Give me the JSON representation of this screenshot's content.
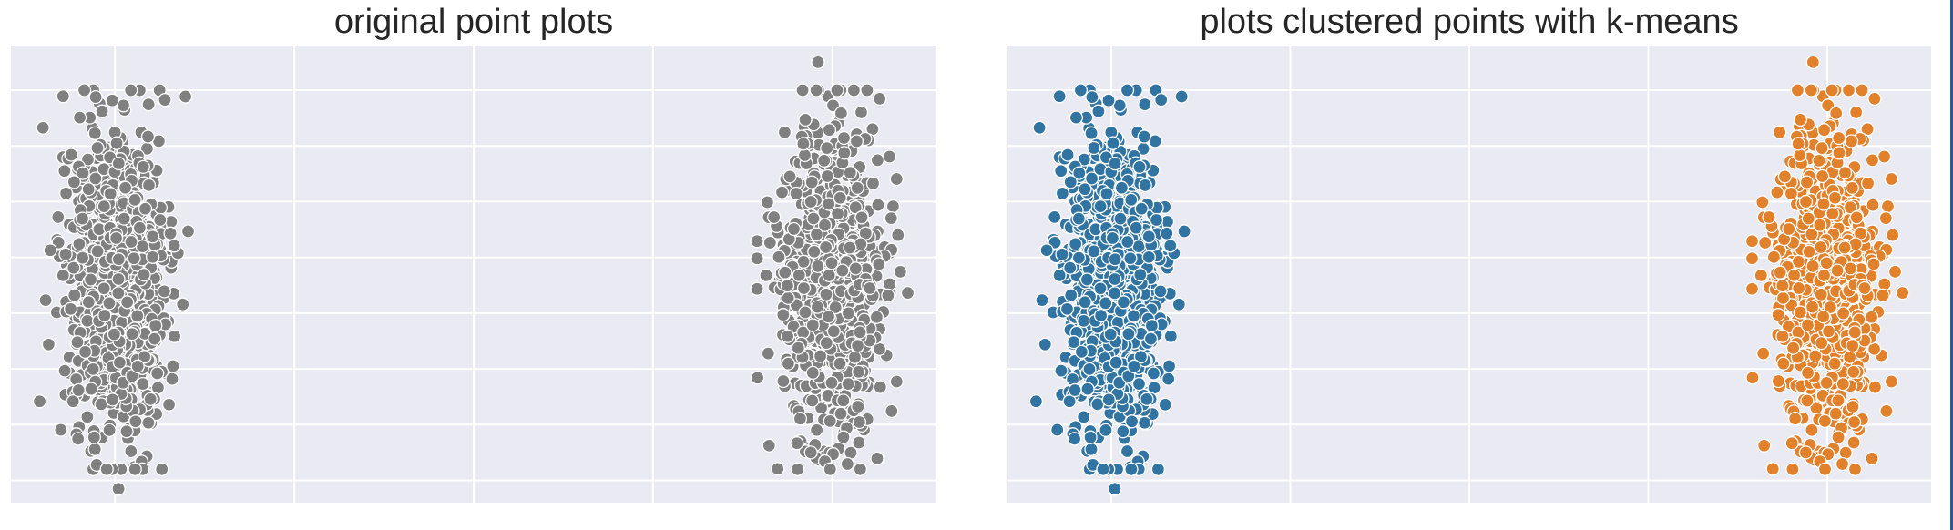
{
  "chart_data": [
    {
      "type": "scatter",
      "title": "original point plots",
      "xlim": [
        -2.9,
        22.9
      ],
      "ylim": [
        -3.9,
        4.3
      ],
      "grid": true,
      "point_color": "#808080",
      "cluster_colors": [
        "#808080",
        "#808080"
      ],
      "clusters": [
        {
          "center": [
            0,
            0
          ],
          "spread": [
            0.9,
            1.4
          ],
          "n": 950
        },
        {
          "center": [
            20,
            0
          ],
          "spread": [
            0.9,
            1.4
          ],
          "n": 950
        }
      ],
      "outliers": [
        [
          19.6,
          4.0
        ],
        [
          0.1,
          -3.65
        ],
        [
          19.4,
          -3.0
        ]
      ]
    },
    {
      "type": "scatter",
      "title": "plots clustered points with k-means",
      "xlim": [
        -2.9,
        22.9
      ],
      "ylim": [
        -3.9,
        4.3
      ],
      "grid": true,
      "cluster_colors": [
        "#3274a1",
        "#e1812c"
      ],
      "clusters": [
        {
          "center": [
            0,
            0
          ],
          "spread": [
            0.9,
            1.4
          ],
          "n": 950
        },
        {
          "center": [
            20,
            0
          ],
          "spread": [
            0.9,
            1.4
          ],
          "n": 950
        }
      ],
      "outliers": [
        [
          19.6,
          4.0
        ],
        [
          0.1,
          -3.65
        ],
        [
          19.4,
          -3.0
        ]
      ]
    }
  ]
}
